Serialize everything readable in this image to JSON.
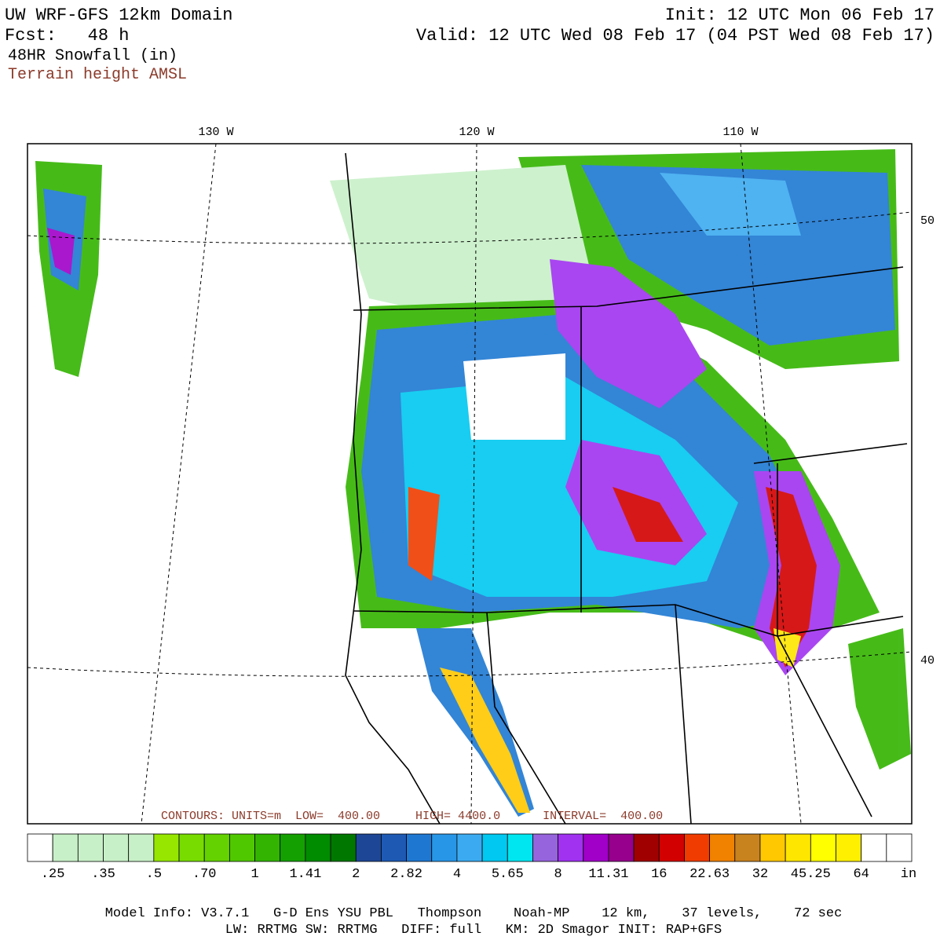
{
  "header": {
    "title": "UW WRF-GFS 12km Domain",
    "forecast": "Fcst:   48 h",
    "field": "48HR Snowfall (in)",
    "contours": "Terrain height AMSL",
    "init": "Init: 12 UTC Mon 06 Feb 17",
    "valid": "Valid: 12 UTC Wed 08 Feb 17 (04 PST Wed 08 Feb 17)"
  },
  "map": {
    "lon_labels": [
      "130 W",
      "120 W",
      "110 W"
    ],
    "lat_labels": [
      "50",
      "40"
    ],
    "contour_info": "CONTOURS: UNITS=m  LOW=  400.00     HIGH= 4400.0      INTERVAL=  400.00"
  },
  "colorbar": {
    "labels": [
      ".25",
      ".35",
      ".5",
      ".70",
      "1",
      "1.41",
      "2",
      "2.82",
      "4",
      "5.65",
      "8",
      "11.31",
      "16",
      "22.63",
      "32",
      "45.25",
      "64"
    ],
    "unit": "in",
    "colors": [
      "#ffffff",
      "#c8f0c8",
      "#c8f0c8",
      "#c8f0c8",
      "#c8f0c8",
      "#96e600",
      "#78dc00",
      "#64d200",
      "#50c800",
      "#32b400",
      "#14a000",
      "#008c00",
      "#007800",
      "#1e4696",
      "#1e5ab4",
      "#1e78d2",
      "#2896e6",
      "#3caaf0",
      "#00c8f0",
      "#00e6f0",
      "#9664dc",
      "#a032f0",
      "#a000c8",
      "#96008c",
      "#a00000",
      "#d20000",
      "#f03c00",
      "#f08200",
      "#c8821e",
      "#ffc800",
      "#ffe600",
      "#ffff00",
      "#fff000",
      "#ffffff",
      "#ffffff"
    ]
  },
  "footer": {
    "line1": "Model Info: V3.7.1   G-D Ens YSU PBL   Thompson    Noah-MP    12 km,    37 levels,    72 sec",
    "line2": "LW: RRTMG SW: RRTMG   DIFF: full   KM: 2D Smagor INIT: RAP+GFS"
  }
}
